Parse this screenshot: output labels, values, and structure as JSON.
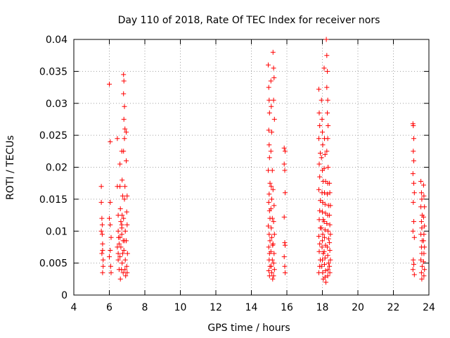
{
  "chart_data": {
    "type": "scatter",
    "title": "Day 110 of 2018, Rate Of TEC Index for receiver nors",
    "xlabel": "GPS time / hours",
    "ylabel": "ROTI / TECUs",
    "xlim": [
      4,
      24
    ],
    "ylim": [
      0,
      0.04
    ],
    "xticks": [
      "4",
      "6",
      "8",
      "10",
      "12",
      "14",
      "16",
      "18",
      "20",
      "22",
      "24"
    ],
    "yticks": [
      "0",
      "0.005",
      "0.01",
      "0.015",
      "0.02",
      "0.025",
      "0.03",
      "0.035",
      "0.04"
    ],
    "grid": true,
    "marker": "+",
    "color": "#ff0000",
    "series": [
      {
        "name": "ROTI",
        "points": [
          [
            5.55,
            0.017
          ],
          [
            5.55,
            0.0145
          ],
          [
            5.58,
            0.012
          ],
          [
            5.6,
            0.011
          ],
          [
            5.6,
            0.0095
          ],
          [
            5.62,
            0.008
          ],
          [
            5.62,
            0.007
          ],
          [
            5.65,
            0.0055
          ],
          [
            5.65,
            0.0045
          ],
          [
            5.62,
            0.0035
          ],
          [
            5.55,
            0.01
          ],
          [
            5.58,
            0.0065
          ],
          [
            6.0,
            0.033
          ],
          [
            6.05,
            0.024
          ],
          [
            6.05,
            0.0145
          ],
          [
            6.0,
            0.012
          ],
          [
            6.1,
            0.009
          ],
          [
            6.05,
            0.007
          ],
          [
            6.0,
            0.006
          ],
          [
            6.08,
            0.0045
          ],
          [
            6.1,
            0.0035
          ],
          [
            6.05,
            0.011
          ],
          [
            6.45,
            0.0245
          ],
          [
            6.45,
            0.017
          ],
          [
            6.5,
            0.0125
          ],
          [
            6.5,
            0.01
          ],
          [
            6.55,
            0.008
          ],
          [
            6.45,
            0.0075
          ],
          [
            6.5,
            0.0055
          ],
          [
            6.55,
            0.004
          ],
          [
            6.5,
            0.0065
          ],
          [
            6.52,
            0.009
          ],
          [
            6.6,
            0.0205
          ],
          [
            6.6,
            0.017
          ],
          [
            6.62,
            0.0135
          ],
          [
            6.65,
            0.0115
          ],
          [
            6.6,
            0.009
          ],
          [
            6.65,
            0.0075
          ],
          [
            6.6,
            0.006
          ],
          [
            6.68,
            0.004
          ],
          [
            6.62,
            0.0025
          ],
          [
            6.7,
            0.0105
          ],
          [
            6.7,
            0.0225
          ],
          [
            6.72,
            0.018
          ],
          [
            6.75,
            0.0155
          ],
          [
            6.72,
            0.0125
          ],
          [
            6.7,
            0.0095
          ],
          [
            6.78,
            0.0085
          ],
          [
            6.75,
            0.0065
          ],
          [
            6.72,
            0.005
          ],
          [
            6.78,
            0.0035
          ],
          [
            6.7,
            0.011
          ],
          [
            6.8,
            0.0345
          ],
          [
            6.82,
            0.0335
          ],
          [
            6.8,
            0.0315
          ],
          [
            6.85,
            0.0295
          ],
          [
            6.82,
            0.0275
          ],
          [
            6.88,
            0.026
          ],
          [
            6.85,
            0.0245
          ],
          [
            6.8,
            0.0225
          ],
          [
            6.88,
            0.017
          ],
          [
            6.85,
            0.015
          ],
          [
            6.8,
            0.012
          ],
          [
            6.9,
            0.01
          ],
          [
            6.85,
            0.0085
          ],
          [
            6.82,
            0.007
          ],
          [
            6.9,
            0.0055
          ],
          [
            6.88,
            0.004
          ],
          [
            6.92,
            0.003
          ],
          [
            6.95,
            0.0255
          ],
          [
            6.95,
            0.021
          ],
          [
            7.0,
            0.0155
          ],
          [
            6.98,
            0.013
          ],
          [
            7.0,
            0.011
          ],
          [
            6.95,
            0.0085
          ],
          [
            7.02,
            0.0065
          ],
          [
            6.98,
            0.0045
          ],
          [
            7.0,
            0.0035
          ],
          [
            14.95,
            0.036
          ],
          [
            14.98,
            0.0325
          ],
          [
            15.0,
            0.0305
          ],
          [
            15.02,
            0.0285
          ],
          [
            14.98,
            0.0258
          ],
          [
            15.0,
            0.0235
          ],
          [
            15.02,
            0.0215
          ],
          [
            14.95,
            0.0195
          ],
          [
            15.05,
            0.0175
          ],
          [
            15.0,
            0.0158
          ],
          [
            14.98,
            0.0145
          ],
          [
            15.02,
            0.0132
          ],
          [
            15.05,
            0.012
          ],
          [
            14.95,
            0.0108
          ],
          [
            15.0,
            0.0095
          ],
          [
            15.05,
            0.0085
          ],
          [
            14.98,
            0.0075
          ],
          [
            15.02,
            0.0065
          ],
          [
            15.0,
            0.0055
          ],
          [
            15.05,
            0.0045
          ],
          [
            14.98,
            0.0038
          ],
          [
            15.02,
            0.003
          ],
          [
            15.1,
            0.0335
          ],
          [
            15.12,
            0.0295
          ],
          [
            15.15,
            0.0255
          ],
          [
            15.1,
            0.0225
          ],
          [
            15.18,
            0.0195
          ],
          [
            15.12,
            0.017
          ],
          [
            15.15,
            0.015
          ],
          [
            15.1,
            0.0135
          ],
          [
            15.18,
            0.012
          ],
          [
            15.12,
            0.0105
          ],
          [
            15.15,
            0.009
          ],
          [
            15.2,
            0.0078
          ],
          [
            15.1,
            0.0068
          ],
          [
            15.18,
            0.0055
          ],
          [
            15.12,
            0.0045
          ],
          [
            15.15,
            0.0035
          ],
          [
            15.2,
            0.0025
          ],
          [
            15.22,
            0.038
          ],
          [
            15.25,
            0.0355
          ],
          [
            15.28,
            0.034
          ],
          [
            15.25,
            0.0305
          ],
          [
            15.3,
            0.0275
          ],
          [
            15.22,
            0.0165
          ],
          [
            15.28,
            0.014
          ],
          [
            15.25,
            0.0115
          ],
          [
            15.3,
            0.0095
          ],
          [
            15.22,
            0.008
          ],
          [
            15.28,
            0.0065
          ],
          [
            15.25,
            0.005
          ],
          [
            15.3,
            0.004
          ],
          [
            15.25,
            0.003
          ],
          [
            15.85,
            0.023
          ],
          [
            15.9,
            0.0225
          ],
          [
            15.85,
            0.0205
          ],
          [
            15.88,
            0.0195
          ],
          [
            15.9,
            0.016
          ],
          [
            15.85,
            0.0122
          ],
          [
            15.88,
            0.0082
          ],
          [
            15.9,
            0.0078
          ],
          [
            15.85,
            0.006
          ],
          [
            15.88,
            0.0045
          ],
          [
            15.9,
            0.0035
          ],
          [
            17.8,
            0.0322
          ],
          [
            17.82,
            0.0285
          ],
          [
            17.85,
            0.0265
          ],
          [
            17.8,
            0.0245
          ],
          [
            17.88,
            0.0222
          ],
          [
            17.82,
            0.0205
          ],
          [
            17.85,
            0.0185
          ],
          [
            17.8,
            0.0165
          ],
          [
            17.88,
            0.0148
          ],
          [
            17.85,
            0.0132
          ],
          [
            17.82,
            0.0118
          ],
          [
            17.88,
            0.0105
          ],
          [
            17.8,
            0.0092
          ],
          [
            17.85,
            0.008
          ],
          [
            17.82,
            0.0068
          ],
          [
            17.88,
            0.0055
          ],
          [
            17.85,
            0.0045
          ],
          [
            17.8,
            0.0035
          ],
          [
            17.95,
            0.0305
          ],
          [
            17.98,
            0.0275
          ],
          [
            18.0,
            0.0255
          ],
          [
            18.02,
            0.0235
          ],
          [
            17.95,
            0.0215
          ],
          [
            18.0,
            0.0195
          ],
          [
            18.05,
            0.0178
          ],
          [
            17.98,
            0.016
          ],
          [
            18.02,
            0.0145
          ],
          [
            18.0,
            0.013
          ],
          [
            18.05,
            0.0118
          ],
          [
            17.95,
            0.0105
          ],
          [
            18.02,
            0.0095
          ],
          [
            18.0,
            0.0085
          ],
          [
            17.98,
            0.0075
          ],
          [
            18.05,
            0.0065
          ],
          [
            18.0,
            0.0055
          ],
          [
            17.95,
            0.0045
          ],
          [
            18.02,
            0.0035
          ],
          [
            18.05,
            0.0025
          ],
          [
            18.1,
            0.0355
          ],
          [
            18.12,
            0.0245
          ],
          [
            18.15,
            0.022
          ],
          [
            18.1,
            0.0198
          ],
          [
            18.18,
            0.0178
          ],
          [
            18.12,
            0.016
          ],
          [
            18.15,
            0.0142
          ],
          [
            18.18,
            0.0128
          ],
          [
            18.1,
            0.0115
          ],
          [
            18.15,
            0.0102
          ],
          [
            18.12,
            0.009
          ],
          [
            18.18,
            0.0078
          ],
          [
            18.1,
            0.0068
          ],
          [
            18.15,
            0.0058
          ],
          [
            18.12,
            0.0048
          ],
          [
            18.18,
            0.0038
          ],
          [
            18.15,
            0.0028
          ],
          [
            18.2,
            0.002
          ],
          [
            18.22,
            0.04
          ],
          [
            18.25,
            0.0375
          ],
          [
            18.28,
            0.035
          ],
          [
            18.25,
            0.0325
          ],
          [
            18.3,
            0.0305
          ],
          [
            18.28,
            0.0285
          ],
          [
            18.32,
            0.0265
          ],
          [
            18.3,
            0.0245
          ],
          [
            18.25,
            0.0225
          ],
          [
            18.32,
            0.02
          ],
          [
            18.3,
            0.0175
          ],
          [
            18.28,
            0.0158
          ],
          [
            18.35,
            0.014
          ],
          [
            18.3,
            0.0125
          ],
          [
            18.25,
            0.0112
          ],
          [
            18.32,
            0.01
          ],
          [
            18.35,
            0.0088
          ],
          [
            18.28,
            0.0075
          ],
          [
            18.3,
            0.0062
          ],
          [
            18.35,
            0.005
          ],
          [
            18.32,
            0.004
          ],
          [
            18.3,
            0.003
          ],
          [
            18.4,
            0.0175
          ],
          [
            18.42,
            0.016
          ],
          [
            18.45,
            0.014
          ],
          [
            18.4,
            0.0125
          ],
          [
            18.42,
            0.011
          ],
          [
            18.45,
            0.0095
          ],
          [
            18.4,
            0.0082
          ],
          [
            18.42,
            0.007
          ],
          [
            18.45,
            0.0055
          ],
          [
            18.4,
            0.0045
          ],
          [
            18.42,
            0.0035
          ],
          [
            23.1,
            0.0268
          ],
          [
            23.12,
            0.0265
          ],
          [
            23.15,
            0.0245
          ],
          [
            23.12,
            0.0225
          ],
          [
            23.15,
            0.021
          ],
          [
            23.1,
            0.019
          ],
          [
            23.15,
            0.0175
          ],
          [
            23.18,
            0.016
          ],
          [
            23.12,
            0.0145
          ],
          [
            23.15,
            0.0115
          ],
          [
            23.1,
            0.01
          ],
          [
            23.18,
            0.009
          ],
          [
            23.12,
            0.0055
          ],
          [
            23.15,
            0.0048
          ],
          [
            23.1,
            0.004
          ],
          [
            23.18,
            0.0032
          ],
          [
            23.55,
            0.0178
          ],
          [
            23.58,
            0.016
          ],
          [
            23.6,
            0.015
          ],
          [
            23.55,
            0.0138
          ],
          [
            23.62,
            0.0125
          ],
          [
            23.58,
            0.0115
          ],
          [
            23.6,
            0.0105
          ],
          [
            23.55,
            0.0095
          ],
          [
            23.62,
            0.0085
          ],
          [
            23.58,
            0.0075
          ],
          [
            23.6,
            0.0065
          ],
          [
            23.55,
            0.0055
          ],
          [
            23.62,
            0.0045
          ],
          [
            23.58,
            0.0035
          ],
          [
            23.6,
            0.0025
          ],
          [
            23.7,
            0.0172
          ],
          [
            23.72,
            0.0155
          ],
          [
            23.75,
            0.0138
          ],
          [
            23.7,
            0.0122
          ],
          [
            23.75,
            0.0108
          ],
          [
            23.72,
            0.0095
          ],
          [
            23.7,
            0.0085
          ],
          [
            23.75,
            0.0075
          ],
          [
            23.72,
            0.0065
          ],
          [
            23.7,
            0.0052
          ],
          [
            23.75,
            0.004
          ],
          [
            23.72,
            0.003
          ]
        ]
      }
    ]
  }
}
